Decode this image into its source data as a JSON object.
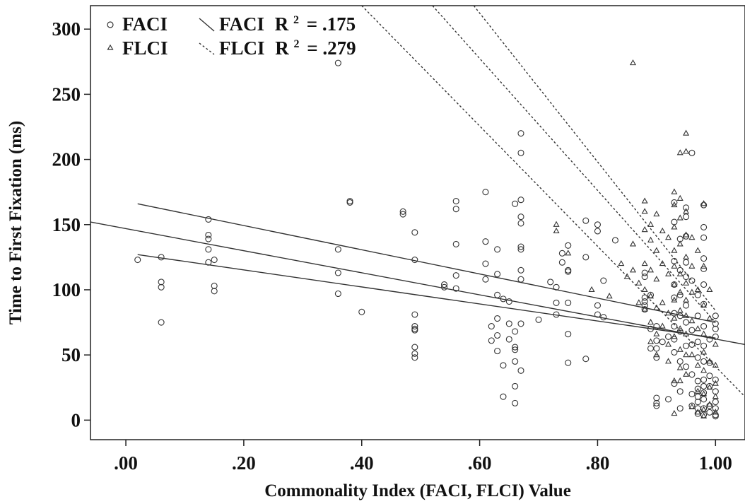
{
  "chart_data": {
    "type": "scatter",
    "xlabel": "Commonality Index (FACI, FLCI) Value",
    "ylabel": "Time to First Fixation (ms)",
    "xlim": [
      -0.06,
      1.05
    ],
    "ylim": [
      -15,
      318
    ],
    "xticks": [
      0.0,
      0.2,
      0.4,
      0.6,
      0.8,
      1.0
    ],
    "xtick_labels": [
      ".00",
      ".20",
      ".40",
      ".60",
      ".80",
      "1.00"
    ],
    "yticks": [
      0,
      50,
      100,
      150,
      200,
      250,
      300
    ],
    "ytick_labels": [
      "0",
      "50",
      "100",
      "150",
      "200",
      "250",
      "300"
    ],
    "grid": false,
    "legend_position": "top-left",
    "legend": [
      {
        "marker": "circle",
        "label": "FACI"
      },
      {
        "marker": "triangle",
        "label": "FLCI"
      },
      {
        "marker": "solid-line",
        "label_name": "FACI",
        "label_stat": "R",
        "label_sup": "2",
        "label_value": "= .175"
      },
      {
        "marker": "dashed-line",
        "label_name": "FLCI",
        "label_stat": "R",
        "label_sup": "2",
        "label_value": "= .279"
      }
    ],
    "series": [
      {
        "name": "FACI",
        "marker": "circle",
        "points": [
          [
            0.02,
            123
          ],
          [
            0.06,
            125
          ],
          [
            0.06,
            106
          ],
          [
            0.06,
            102
          ],
          [
            0.06,
            75
          ],
          [
            0.14,
            154
          ],
          [
            0.14,
            142
          ],
          [
            0.14,
            139
          ],
          [
            0.14,
            131
          ],
          [
            0.14,
            121
          ],
          [
            0.15,
            123
          ],
          [
            0.15,
            103
          ],
          [
            0.15,
            99
          ],
          [
            0.36,
            274
          ],
          [
            0.36,
            131
          ],
          [
            0.36,
            113
          ],
          [
            0.36,
            97
          ],
          [
            0.38,
            168
          ],
          [
            0.38,
            167
          ],
          [
            0.4,
            83
          ],
          [
            0.47,
            160
          ],
          [
            0.47,
            158
          ],
          [
            0.49,
            144
          ],
          [
            0.49,
            123
          ],
          [
            0.49,
            81
          ],
          [
            0.49,
            72
          ],
          [
            0.49,
            70
          ],
          [
            0.49,
            69
          ],
          [
            0.49,
            56
          ],
          [
            0.49,
            51
          ],
          [
            0.49,
            48
          ],
          [
            0.54,
            104
          ],
          [
            0.54,
            102
          ],
          [
            0.56,
            168
          ],
          [
            0.56,
            162
          ],
          [
            0.56,
            135
          ],
          [
            0.56,
            111
          ],
          [
            0.56,
            101
          ],
          [
            0.61,
            175
          ],
          [
            0.61,
            137
          ],
          [
            0.61,
            120
          ],
          [
            0.61,
            108
          ],
          [
            0.62,
            72
          ],
          [
            0.62,
            61
          ],
          [
            0.63,
            131
          ],
          [
            0.63,
            112
          ],
          [
            0.63,
            96
          ],
          [
            0.63,
            78
          ],
          [
            0.63,
            65
          ],
          [
            0.63,
            53
          ],
          [
            0.64,
            42
          ],
          [
            0.64,
            18
          ],
          [
            0.64,
            93
          ],
          [
            0.65,
            91
          ],
          [
            0.65,
            74
          ],
          [
            0.65,
            62
          ],
          [
            0.66,
            166
          ],
          [
            0.66,
            68
          ],
          [
            0.66,
            56
          ],
          [
            0.66,
            54
          ],
          [
            0.66,
            45
          ],
          [
            0.66,
            26
          ],
          [
            0.66,
            13
          ],
          [
            0.67,
            220
          ],
          [
            0.67,
            205
          ],
          [
            0.67,
            169
          ],
          [
            0.67,
            156
          ],
          [
            0.67,
            151
          ],
          [
            0.67,
            133
          ],
          [
            0.67,
            131
          ],
          [
            0.67,
            115
          ],
          [
            0.67,
            108
          ],
          [
            0.67,
            74
          ],
          [
            0.67,
            38
          ],
          [
            0.7,
            77
          ],
          [
            0.72,
            106
          ],
          [
            0.73,
            102
          ],
          [
            0.73,
            90
          ],
          [
            0.73,
            81
          ],
          [
            0.74,
            128
          ],
          [
            0.74,
            121
          ],
          [
            0.75,
            134
          ],
          [
            0.75,
            115
          ],
          [
            0.75,
            114
          ],
          [
            0.75,
            90
          ],
          [
            0.75,
            66
          ],
          [
            0.75,
            44
          ],
          [
            0.78,
            153
          ],
          [
            0.78,
            125
          ],
          [
            0.78,
            47
          ],
          [
            0.8,
            150
          ],
          [
            0.8,
            145
          ],
          [
            0.8,
            88
          ],
          [
            0.8,
            81
          ],
          [
            0.81,
            107
          ],
          [
            0.81,
            79
          ],
          [
            0.83,
            138
          ],
          [
            0.88,
            113
          ],
          [
            0.88,
            110
          ],
          [
            0.88,
            94
          ],
          [
            0.88,
            91
          ],
          [
            0.88,
            88
          ],
          [
            0.88,
            85
          ],
          [
            0.89,
            96
          ],
          [
            0.89,
            70
          ],
          [
            0.89,
            55
          ],
          [
            0.9,
            72
          ],
          [
            0.9,
            61
          ],
          [
            0.9,
            55
          ],
          [
            0.9,
            48
          ],
          [
            0.9,
            17
          ],
          [
            0.9,
            13
          ],
          [
            0.9,
            11
          ],
          [
            0.91,
            60
          ],
          [
            0.92,
            64
          ],
          [
            0.92,
            16
          ],
          [
            0.93,
            167
          ],
          [
            0.93,
            152
          ],
          [
            0.93,
            122
          ],
          [
            0.93,
            104
          ],
          [
            0.93,
            94
          ],
          [
            0.93,
            82
          ],
          [
            0.93,
            72
          ],
          [
            0.93,
            62
          ],
          [
            0.93,
            52
          ],
          [
            0.93,
            28
          ],
          [
            0.94,
            139
          ],
          [
            0.94,
            115
          ],
          [
            0.94,
            96
          ],
          [
            0.94,
            80
          ],
          [
            0.94,
            68
          ],
          [
            0.94,
            45
          ],
          [
            0.94,
            22
          ],
          [
            0.94,
            9
          ],
          [
            0.95,
            163
          ],
          [
            0.95,
            156
          ],
          [
            0.95,
            141
          ],
          [
            0.95,
            121
          ],
          [
            0.95,
            110
          ],
          [
            0.95,
            88
          ],
          [
            0.95,
            75
          ],
          [
            0.95,
            57
          ],
          [
            0.95,
            41
          ],
          [
            0.96,
            205
          ],
          [
            0.96,
            107
          ],
          [
            0.96,
            69
          ],
          [
            0.96,
            58
          ],
          [
            0.96,
            35
          ],
          [
            0.96,
            20
          ],
          [
            0.96,
            11
          ],
          [
            0.97,
            96
          ],
          [
            0.97,
            80
          ],
          [
            0.97,
            60
          ],
          [
            0.97,
            48
          ],
          [
            0.97,
            30
          ],
          [
            0.97,
            24
          ],
          [
            0.97,
            18
          ],
          [
            0.97,
            14
          ],
          [
            0.97,
            9
          ],
          [
            0.97,
            5
          ],
          [
            0.98,
            165
          ],
          [
            0.98,
            148
          ],
          [
            0.98,
            140
          ],
          [
            0.98,
            124
          ],
          [
            0.98,
            116
          ],
          [
            0.98,
            104
          ],
          [
            0.98,
            89
          ],
          [
            0.98,
            72
          ],
          [
            0.98,
            57
          ],
          [
            0.98,
            45
          ],
          [
            0.98,
            31
          ],
          [
            0.98,
            26
          ],
          [
            0.98,
            21
          ],
          [
            0.98,
            16
          ],
          [
            0.98,
            9
          ],
          [
            0.98,
            4
          ],
          [
            0.99,
            62
          ],
          [
            0.99,
            44
          ],
          [
            0.99,
            34
          ],
          [
            0.99,
            26
          ],
          [
            0.99,
            11
          ],
          [
            0.99,
            6
          ],
          [
            1.0,
            80
          ],
          [
            1.0,
            74
          ],
          [
            1.0,
            70
          ],
          [
            1.0,
            64
          ],
          [
            1.0,
            31
          ],
          [
            1.0,
            22
          ],
          [
            1.0,
            14
          ],
          [
            1.0,
            9
          ],
          [
            1.0,
            4
          ],
          [
            1.0,
            3
          ]
        ]
      },
      {
        "name": "FLCI",
        "marker": "triangle",
        "points": [
          [
            0.73,
            150
          ],
          [
            0.73,
            145
          ],
          [
            0.75,
            128
          ],
          [
            0.79,
            100
          ],
          [
            0.82,
            95
          ],
          [
            0.84,
            120
          ],
          [
            0.85,
            110
          ],
          [
            0.86,
            274
          ],
          [
            0.86,
            135
          ],
          [
            0.86,
            115
          ],
          [
            0.87,
            105
          ],
          [
            0.87,
            90
          ],
          [
            0.88,
            168
          ],
          [
            0.88,
            160
          ],
          [
            0.88,
            146
          ],
          [
            0.88,
            120
          ],
          [
            0.88,
            100
          ],
          [
            0.88,
            85
          ],
          [
            0.89,
            150
          ],
          [
            0.89,
            138
          ],
          [
            0.89,
            115
          ],
          [
            0.89,
            95
          ],
          [
            0.89,
            75
          ],
          [
            0.89,
            60
          ],
          [
            0.9,
            158
          ],
          [
            0.9,
            130
          ],
          [
            0.9,
            108
          ],
          [
            0.9,
            86
          ],
          [
            0.9,
            66
          ],
          [
            0.9,
            50
          ],
          [
            0.91,
            145
          ],
          [
            0.91,
            120
          ],
          [
            0.91,
            90
          ],
          [
            0.91,
            72
          ],
          [
            0.92,
            140
          ],
          [
            0.92,
            112
          ],
          [
            0.92,
            82
          ],
          [
            0.92,
            58
          ],
          [
            0.92,
            45
          ],
          [
            0.93,
            175
          ],
          [
            0.93,
            165
          ],
          [
            0.93,
            148
          ],
          [
            0.93,
            130
          ],
          [
            0.93,
            118
          ],
          [
            0.93,
            104
          ],
          [
            0.93,
            92
          ],
          [
            0.93,
            78
          ],
          [
            0.93,
            64
          ],
          [
            0.93,
            30
          ],
          [
            0.93,
            5
          ],
          [
            0.94,
            205
          ],
          [
            0.94,
            170
          ],
          [
            0.94,
            155
          ],
          [
            0.94,
            135
          ],
          [
            0.94,
            112
          ],
          [
            0.94,
            98
          ],
          [
            0.94,
            84
          ],
          [
            0.94,
            70
          ],
          [
            0.94,
            54
          ],
          [
            0.94,
            40
          ],
          [
            0.94,
            30
          ],
          [
            0.95,
            220
          ],
          [
            0.95,
            206
          ],
          [
            0.95,
            160
          ],
          [
            0.95,
            142
          ],
          [
            0.95,
            125
          ],
          [
            0.95,
            105
          ],
          [
            0.95,
            92
          ],
          [
            0.95,
            80
          ],
          [
            0.95,
            66
          ],
          [
            0.95,
            50
          ],
          [
            0.95,
            35
          ],
          [
            0.96,
            140
          ],
          [
            0.96,
            118
          ],
          [
            0.96,
            98
          ],
          [
            0.96,
            76
          ],
          [
            0.96,
            50
          ],
          [
            0.96,
            10
          ],
          [
            0.97,
            130
          ],
          [
            0.97,
            100
          ],
          [
            0.97,
            70
          ],
          [
            0.97,
            42
          ],
          [
            0.97,
            22
          ],
          [
            0.97,
            6
          ],
          [
            0.98,
            166
          ],
          [
            0.98,
            118
          ],
          [
            0.98,
            88
          ],
          [
            0.98,
            66
          ],
          [
            0.98,
            52
          ],
          [
            0.98,
            38
          ],
          [
            0.98,
            20
          ],
          [
            0.98,
            8
          ],
          [
            0.98,
            3
          ],
          [
            0.99,
            100
          ],
          [
            0.99,
            78
          ],
          [
            0.99,
            45
          ],
          [
            0.99,
            25
          ],
          [
            0.99,
            12
          ],
          [
            1.0,
            58
          ],
          [
            1.0,
            42
          ],
          [
            1.0,
            28
          ],
          [
            1.0,
            18
          ],
          [
            1.0,
            6
          ]
        ]
      }
    ],
    "fit_lines": [
      {
        "style": "solid",
        "points": [
          [
            0.02,
            166
          ],
          [
            1.0,
            75
          ]
        ]
      },
      {
        "style": "solid",
        "points": [
          [
            -0.06,
            152
          ],
          [
            1.05,
            58
          ]
        ]
      },
      {
        "style": "solid",
        "points": [
          [
            0.02,
            127
          ],
          [
            1.0,
            63
          ]
        ]
      },
      {
        "style": "dashed",
        "points": [
          [
            0.4,
            318
          ],
          [
            1.05,
            18
          ]
        ]
      },
      {
        "style": "dashed",
        "points": [
          [
            0.52,
            318
          ],
          [
            1.0,
            75
          ]
        ]
      },
      {
        "style": "dashed",
        "points": [
          [
            0.59,
            318
          ],
          [
            1.0,
            84
          ]
        ]
      }
    ]
  }
}
